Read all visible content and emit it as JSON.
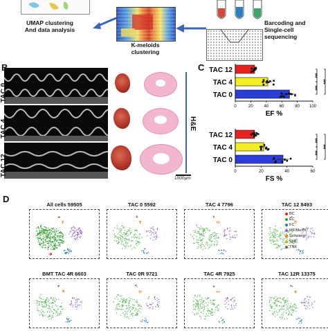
{
  "panels": {
    "B": "B",
    "C": "C",
    "D": "D"
  },
  "workflow": {
    "umap_step": "UMAP clustering\nAnd data analysis",
    "kmeloids_step": "K-meloids\nclustering",
    "barcode_step": "Barcoding and\nSingle-cell\nsequencing"
  },
  "panel_b": {
    "rows": [
      "TAC 0",
      "TAC 4",
      "TAC 12"
    ],
    "stain_label": "H&E",
    "scale_label": "1000μm"
  },
  "chart_data": [
    {
      "type": "bar",
      "orientation": "horizontal",
      "categories": [
        "TAC 12",
        "TAC 4",
        "TAC 0"
      ],
      "values": [
        25,
        42,
        70
      ],
      "xlabel": "EF %",
      "xticks": [
        0,
        20,
        40,
        60,
        80,
        100
      ],
      "xlim": [
        0,
        100
      ],
      "bar_colors": [
        "#e8211f",
        "#f2ee22",
        "#2a3dd9"
      ],
      "significance": [
        "***",
        "***",
        "***"
      ]
    },
    {
      "type": "bar",
      "orientation": "horizontal",
      "categories": [
        "TAC 12",
        "TAC 4",
        "TAC 0"
      ],
      "values": [
        15,
        22,
        37
      ],
      "xlabel": "FS %",
      "xticks": [
        0,
        20,
        40,
        60
      ],
      "xlim": [
        0,
        60
      ],
      "bar_colors": [
        "#e8211f",
        "#f2ee22",
        "#2a3dd9"
      ],
      "significance": [
        "***",
        "***",
        "***"
      ]
    }
  ],
  "panel_d": {
    "umaps": [
      {
        "title": "All cells 59505"
      },
      {
        "title": "TAC 0 5592"
      },
      {
        "title": "TAC 4 7796"
      },
      {
        "title": "TAC 12 8493"
      },
      {
        "title": "BMT TAC 4R  6603"
      },
      {
        "title": "TAC 0R 9721"
      },
      {
        "title": "TAC 4R 7925"
      },
      {
        "title": "TAC 12R 13375"
      }
    ],
    "legend": [
      {
        "label": "BC",
        "color": "#d62728"
      },
      {
        "label": "EC",
        "color": "#2ca02c"
      },
      {
        "label": "FC",
        "color": "#1f77b4"
      },
      {
        "label": "MF/Mo/DC",
        "color": "#9467bd"
      },
      {
        "label": "Schwann",
        "color": "#ff7f0e"
      },
      {
        "label": "SMC",
        "color": "#bcbd22"
      },
      {
        "label": "TNK",
        "color": "#8c564b"
      }
    ]
  }
}
